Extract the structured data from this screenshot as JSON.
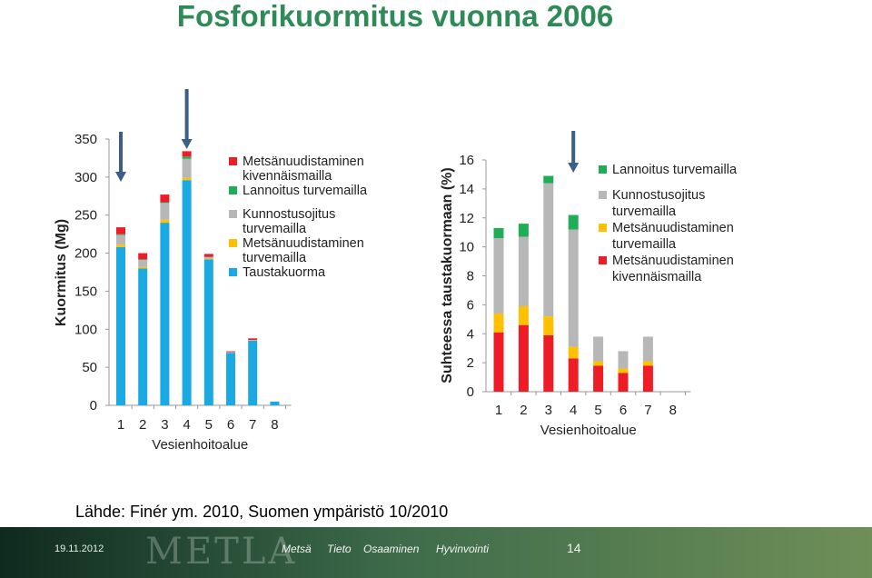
{
  "slide": {
    "title": "Fosforikuormitus vuonna 2006",
    "source": "Lähde: Finér ym. 2010,  Suomen ympäristö 10/2010",
    "footer": {
      "date": "19.11.2012",
      "logo": "METLA",
      "tags": [
        "Metsä",
        "Tieto",
        "Osaaminen",
        "Hyvinvointi"
      ],
      "page_number": "14"
    }
  },
  "colors": {
    "title": "#2e8b57",
    "taustakuorma": "#1aa9e2",
    "metsanuud_turvemailla": "#ffc000",
    "kunnostusojitus": "#b7b7b7",
    "lannoitus": "#1fae56",
    "metsanuud_kivennaismailla": "#ee1c25",
    "arrow": "#3b5f8a"
  },
  "chart_data": [
    {
      "type": "bar",
      "stacked": true,
      "title": "",
      "xlabel": "Vesienhoitoalue",
      "ylabel": "Kuormitus (Mg)",
      "ylim": [
        0,
        350
      ],
      "yticks": [
        0,
        50,
        100,
        150,
        200,
        250,
        300,
        350
      ],
      "categories": [
        "1",
        "2",
        "3",
        "4",
        "5",
        "6",
        "7",
        "8"
      ],
      "highlighted_categories": [
        "1",
        "4"
      ],
      "legend_position": "right",
      "series": [
        {
          "name": "Taustakuorma",
          "color_key": "taustakuorma",
          "values": [
            208,
            180,
            240,
            296,
            192,
            69,
            85,
            5
          ]
        },
        {
          "name": "Metsänuudistaminen turvemailla",
          "color_key": "metsanuud_turvemailla",
          "values": [
            3,
            2,
            4,
            3,
            1,
            0,
            0,
            0
          ]
        },
        {
          "name": "Kunnostusojitus turvemailla",
          "color_key": "kunnostusojitus",
          "values": [
            13,
            9,
            22,
            25,
            2,
            1,
            1,
            0
          ]
        },
        {
          "name": "Lannoitus turvemailla",
          "color_key": "lannoitus",
          "values": [
            1,
            1,
            1,
            3,
            0,
            0,
            0,
            0
          ]
        },
        {
          "name": "Metsänuudistaminen kivennäismailla",
          "color_key": "metsanuud_kivennaismailla",
          "values": [
            9,
            8,
            10,
            7,
            4,
            1,
            2,
            0
          ]
        }
      ],
      "legend": [
        "Metsänuudistaminen kivennäismailla",
        "Lannoitus turvemailla",
        "Kunnostusojitus turvemailla",
        "Metsänuudistaminen turvemailla",
        "Taustakuorma"
      ]
    },
    {
      "type": "bar",
      "stacked": true,
      "title": "",
      "xlabel": "Vesienhoitoalue",
      "ylabel": "Suhteessa taustakuormaan (%)",
      "ylim": [
        0,
        16
      ],
      "yticks": [
        0,
        2,
        4,
        6,
        8,
        10,
        12,
        14,
        16
      ],
      "categories": [
        "1",
        "2",
        "3",
        "4",
        "5",
        "6",
        "7",
        "8"
      ],
      "highlighted_categories": [
        "4"
      ],
      "legend_position": "right",
      "series": [
        {
          "name": "Metsänuudistaminen kivennäismailla",
          "color_key": "metsanuud_kivennaismailla",
          "values": [
            4.1,
            4.6,
            3.9,
            2.3,
            1.8,
            1.3,
            1.8,
            0
          ]
        },
        {
          "name": "Metsänuudistaminen turvemailla",
          "color_key": "metsanuud_turvemailla",
          "values": [
            1.3,
            1.3,
            1.3,
            0.8,
            0.3,
            0.3,
            0.3,
            0
          ]
        },
        {
          "name": "Kunnostusojitus turvemailla",
          "color_key": "kunnostusojitus",
          "values": [
            5.2,
            4.8,
            9.2,
            8.1,
            1.7,
            1.2,
            1.7,
            0
          ]
        },
        {
          "name": "Lannoitus turvemailla",
          "color_key": "lannoitus",
          "values": [
            0.7,
            0.9,
            0.5,
            1.0,
            0,
            0,
            0,
            0
          ]
        }
      ],
      "legend": [
        "Lannoitus turvemailla",
        "Kunnostusojitus turvemailla",
        "Metsänuudistaminen turvemailla",
        "Metsänuudistaminen kivennäismailla"
      ]
    }
  ]
}
